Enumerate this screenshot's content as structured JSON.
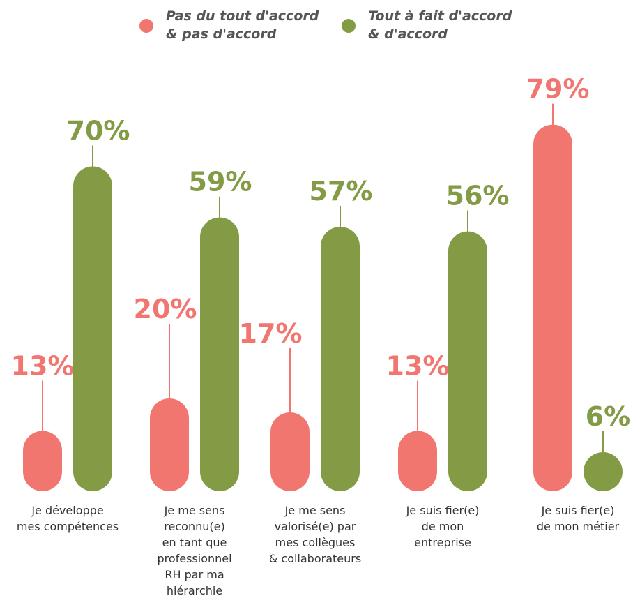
{
  "colors": {
    "disagree": "#F27670",
    "agree": "#849B46"
  },
  "chart_data": {
    "type": "bar",
    "categories": [
      [
        "Je développe",
        "mes compétences"
      ],
      [
        "Je me sens",
        "reconnu(e)",
        "en tant que",
        "professionnel",
        "RH par ma",
        "hiérarchie"
      ],
      [
        "Je me sens",
        "valorisé(e) par",
        "mes collègues",
        "& collaborateurs"
      ],
      [
        "Je suis fier(e)",
        "de mon",
        "entreprise"
      ],
      [
        "Je suis fier(e)",
        "de mon métier"
      ]
    ],
    "series": [
      {
        "name": [
          "Pas du tout d'accord",
          "& pas d'accord"
        ],
        "values": [
          13,
          20,
          17,
          13,
          79
        ],
        "labels": [
          "13%",
          "20%",
          "17%",
          "13%",
          "79%"
        ]
      },
      {
        "name": [
          "Tout à fait d'accord",
          "& d'accord"
        ],
        "values": [
          70,
          59,
          57,
          56,
          6
        ],
        "labels": [
          "70%",
          "59%",
          "57%",
          "56%",
          "6%"
        ]
      }
    ],
    "legend": "top-center",
    "grid": false,
    "ylim": [
      0,
      100
    ]
  }
}
